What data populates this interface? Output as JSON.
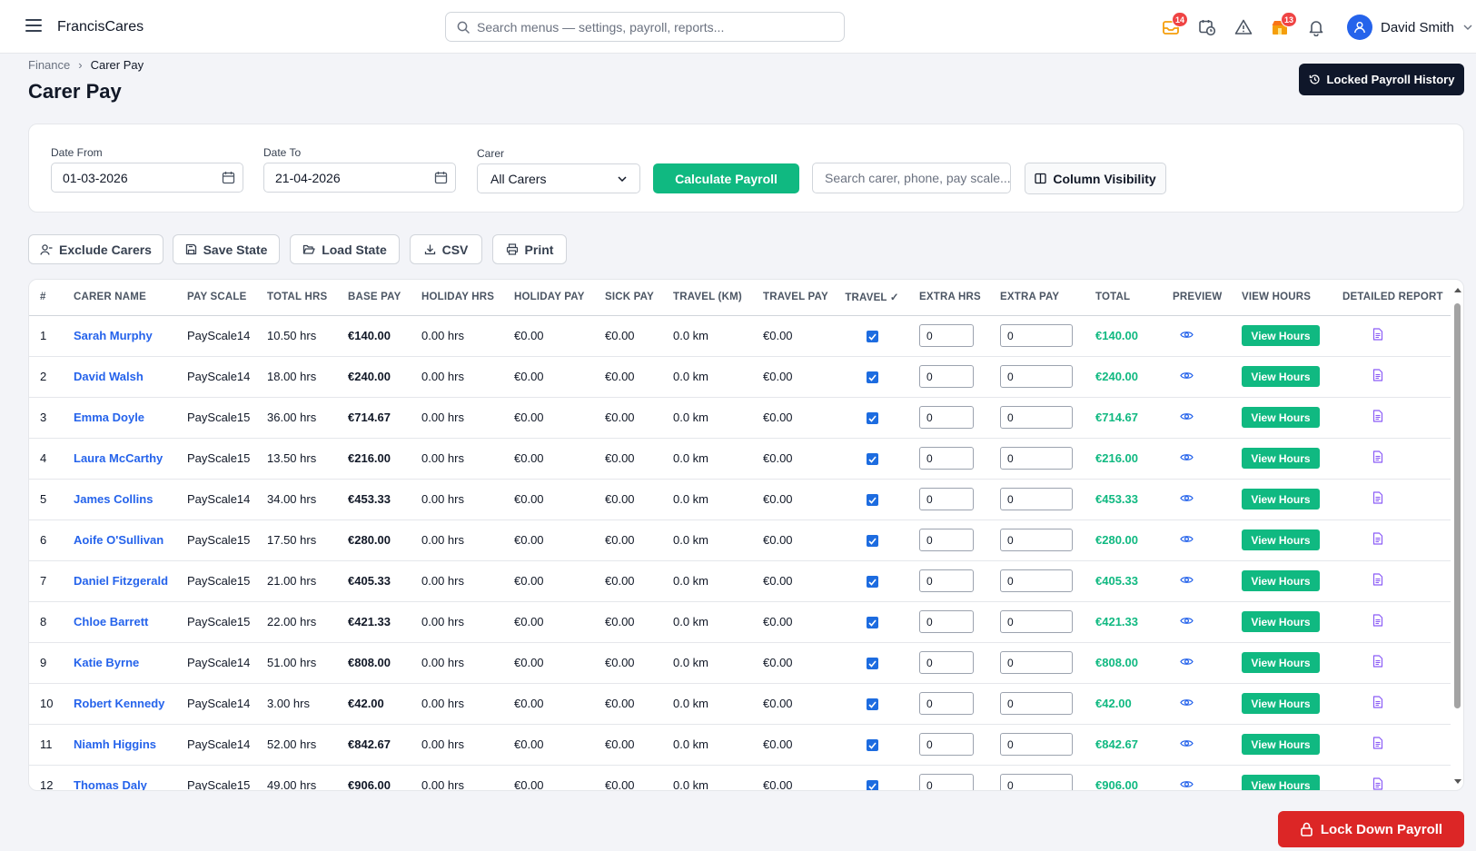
{
  "app": {
    "name": "FrancisCares"
  },
  "search": {
    "placeholder": "Search menus — settings, payroll, reports..."
  },
  "notifications": {
    "messages_badge": "14",
    "store_badge": "13"
  },
  "user": {
    "name": "David Smith"
  },
  "breadcrumb": {
    "parent": "Finance",
    "separator": "›",
    "current": "Carer Pay"
  },
  "page": {
    "title": "Carer Pay",
    "history_button": "Locked Payroll History"
  },
  "filters": {
    "date_from_label": "Date From",
    "date_from_value": "01-03-2026",
    "date_to_label": "Date To",
    "date_to_value": "21-04-2026",
    "carer_label": "Carer",
    "carer_value": "All Carers",
    "calculate_label": "Calculate Payroll",
    "search_placeholder": "Search carer, phone, pay scale...",
    "column_visibility_label": "Column Visibility"
  },
  "actions": {
    "exclude": "Exclude Carers",
    "save": "Save State",
    "load": "Load State",
    "csv": "CSV",
    "print": "Print"
  },
  "table": {
    "columns": [
      "#",
      "Carer Name",
      "Pay Scale",
      "Total Hrs",
      "Base Pay",
      "Holiday Hrs",
      "Holiday Pay",
      "Sick Pay",
      "Travel (KM)",
      "Travel Pay",
      "Travel ✓",
      "Extra Hrs",
      "Extra Pay",
      "Total",
      "Preview",
      "View Hours",
      "Detailed Report"
    ],
    "view_hours_label": "View Hours",
    "rows": [
      {
        "n": "1",
        "name": "Sarah Murphy",
        "scale": "PayScale14",
        "hrs": "10.50 hrs",
        "base": "€140.00",
        "hol_hrs": "0.00 hrs",
        "hol_pay": "€0.00",
        "sick": "€0.00",
        "km": "0.0 km",
        "travel": "€0.00",
        "travel_checked": true,
        "extra_hrs": "0",
        "extra_pay": "0",
        "total": "€140.00"
      },
      {
        "n": "2",
        "name": "David Walsh",
        "scale": "PayScale14",
        "hrs": "18.00 hrs",
        "base": "€240.00",
        "hol_hrs": "0.00 hrs",
        "hol_pay": "€0.00",
        "sick": "€0.00",
        "km": "0.0 km",
        "travel": "€0.00",
        "travel_checked": true,
        "extra_hrs": "0",
        "extra_pay": "0",
        "total": "€240.00"
      },
      {
        "n": "3",
        "name": "Emma Doyle",
        "scale": "PayScale15",
        "hrs": "36.00 hrs",
        "base": "€714.67",
        "hol_hrs": "0.00 hrs",
        "hol_pay": "€0.00",
        "sick": "€0.00",
        "km": "0.0 km",
        "travel": "€0.00",
        "travel_checked": true,
        "extra_hrs": "0",
        "extra_pay": "0",
        "total": "€714.67"
      },
      {
        "n": "4",
        "name": "Laura McCarthy",
        "scale": "PayScale15",
        "hrs": "13.50 hrs",
        "base": "€216.00",
        "hol_hrs": "0.00 hrs",
        "hol_pay": "€0.00",
        "sick": "€0.00",
        "km": "0.0 km",
        "travel": "€0.00",
        "travel_checked": true,
        "extra_hrs": "0",
        "extra_pay": "0",
        "total": "€216.00"
      },
      {
        "n": "5",
        "name": "James Collins",
        "scale": "PayScale14",
        "hrs": "34.00 hrs",
        "base": "€453.33",
        "hol_hrs": "0.00 hrs",
        "hol_pay": "€0.00",
        "sick": "€0.00",
        "km": "0.0 km",
        "travel": "€0.00",
        "travel_checked": true,
        "extra_hrs": "0",
        "extra_pay": "0",
        "total": "€453.33"
      },
      {
        "n": "6",
        "name": "Aoife O'Sullivan",
        "scale": "PayScale15",
        "hrs": "17.50 hrs",
        "base": "€280.00",
        "hol_hrs": "0.00 hrs",
        "hol_pay": "€0.00",
        "sick": "€0.00",
        "km": "0.0 km",
        "travel": "€0.00",
        "travel_checked": true,
        "extra_hrs": "0",
        "extra_pay": "0",
        "total": "€280.00"
      },
      {
        "n": "7",
        "name": "Daniel Fitzgerald",
        "scale": "PayScale15",
        "hrs": "21.00 hrs",
        "base": "€405.33",
        "hol_hrs": "0.00 hrs",
        "hol_pay": "€0.00",
        "sick": "€0.00",
        "km": "0.0 km",
        "travel": "€0.00",
        "travel_checked": true,
        "extra_hrs": "0",
        "extra_pay": "0",
        "total": "€405.33"
      },
      {
        "n": "8",
        "name": "Chloe Barrett",
        "scale": "PayScale15",
        "hrs": "22.00 hrs",
        "base": "€421.33",
        "hol_hrs": "0.00 hrs",
        "hol_pay": "€0.00",
        "sick": "€0.00",
        "km": "0.0 km",
        "travel": "€0.00",
        "travel_checked": true,
        "extra_hrs": "0",
        "extra_pay": "0",
        "total": "€421.33"
      },
      {
        "n": "9",
        "name": "Katie Byrne",
        "scale": "PayScale14",
        "hrs": "51.00 hrs",
        "base": "€808.00",
        "hol_hrs": "0.00 hrs",
        "hol_pay": "€0.00",
        "sick": "€0.00",
        "km": "0.0 km",
        "travel": "€0.00",
        "travel_checked": true,
        "extra_hrs": "0",
        "extra_pay": "0",
        "total": "€808.00"
      },
      {
        "n": "10",
        "name": "Robert Kennedy",
        "scale": "PayScale14",
        "hrs": "3.00 hrs",
        "base": "€42.00",
        "hol_hrs": "0.00 hrs",
        "hol_pay": "€0.00",
        "sick": "€0.00",
        "km": "0.0 km",
        "travel": "€0.00",
        "travel_checked": true,
        "extra_hrs": "0",
        "extra_pay": "0",
        "total": "€42.00"
      },
      {
        "n": "11",
        "name": "Niamh Higgins",
        "scale": "PayScale14",
        "hrs": "52.00 hrs",
        "base": "€842.67",
        "hol_hrs": "0.00 hrs",
        "hol_pay": "€0.00",
        "sick": "€0.00",
        "km": "0.0 km",
        "travel": "€0.00",
        "travel_checked": true,
        "extra_hrs": "0",
        "extra_pay": "0",
        "total": "€842.67"
      },
      {
        "n": "12",
        "name": "Thomas Daly",
        "scale": "PayScale15",
        "hrs": "49.00 hrs",
        "base": "€906.00",
        "hol_hrs": "0.00 hrs",
        "hol_pay": "€0.00",
        "sick": "€0.00",
        "km": "0.0 km",
        "travel": "€0.00",
        "travel_checked": true,
        "extra_hrs": "0",
        "extra_pay": "0",
        "total": "€906.00"
      }
    ]
  },
  "footer": {
    "lock_label": "Lock Down Payroll"
  },
  "colors": {
    "accent_green": "#10b981",
    "link_blue": "#2563eb",
    "danger_red": "#dc2626",
    "dark_navy": "#0f172a"
  }
}
